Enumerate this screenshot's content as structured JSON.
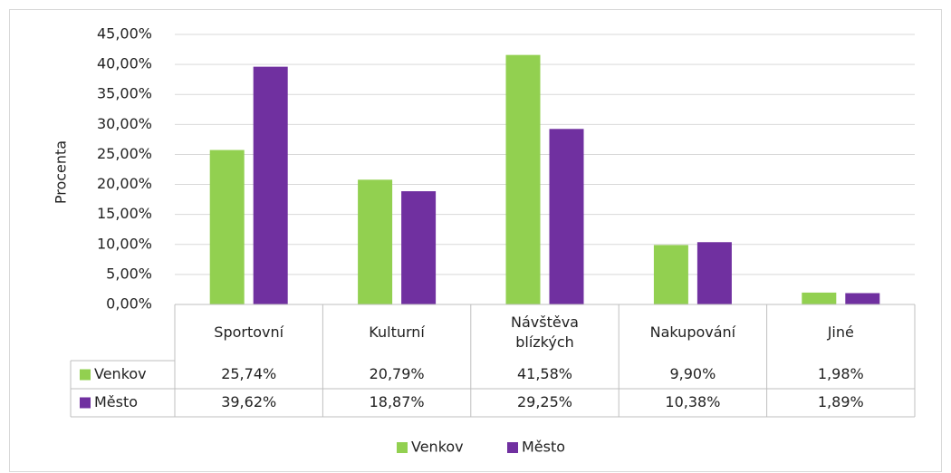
{
  "chart_data": {
    "type": "bar",
    "y_label": "Procenta",
    "categories": [
      "Sportovní",
      "Kulturní",
      "Návštěva blízkých",
      "Nakupování",
      "Jiné"
    ],
    "series": [
      {
        "name": "Venkov",
        "color": "#92d050",
        "values": [
          25.74,
          20.79,
          41.58,
          9.9,
          1.98
        ],
        "value_labels": [
          "25,74%",
          "20,79%",
          "41,58%",
          "9,90%",
          "1,98%"
        ]
      },
      {
        "name": "Město",
        "color": "#7030a0",
        "values": [
          39.62,
          18.87,
          29.25,
          10.38,
          1.89
        ],
        "value_labels": [
          "39,62%",
          "18,87%",
          "29,25%",
          "10,38%",
          "1,89%"
        ]
      }
    ],
    "ylim": [
      0,
      45
    ],
    "yticks": [
      {
        "value": 0,
        "label": "0,00%"
      },
      {
        "value": 5,
        "label": "5,00%"
      },
      {
        "value": 10,
        "label": "10,00%"
      },
      {
        "value": 15,
        "label": "15,00%"
      },
      {
        "value": 20,
        "label": "20,00%"
      },
      {
        "value": 25,
        "label": "25,00%"
      },
      {
        "value": 30,
        "label": "30,00%"
      },
      {
        "value": 35,
        "label": "35,00%"
      },
      {
        "value": 40,
        "label": "40,00%"
      },
      {
        "value": 45,
        "label": "45,00%"
      }
    ],
    "grid": true,
    "legend": "bottom",
    "data_table": true
  }
}
